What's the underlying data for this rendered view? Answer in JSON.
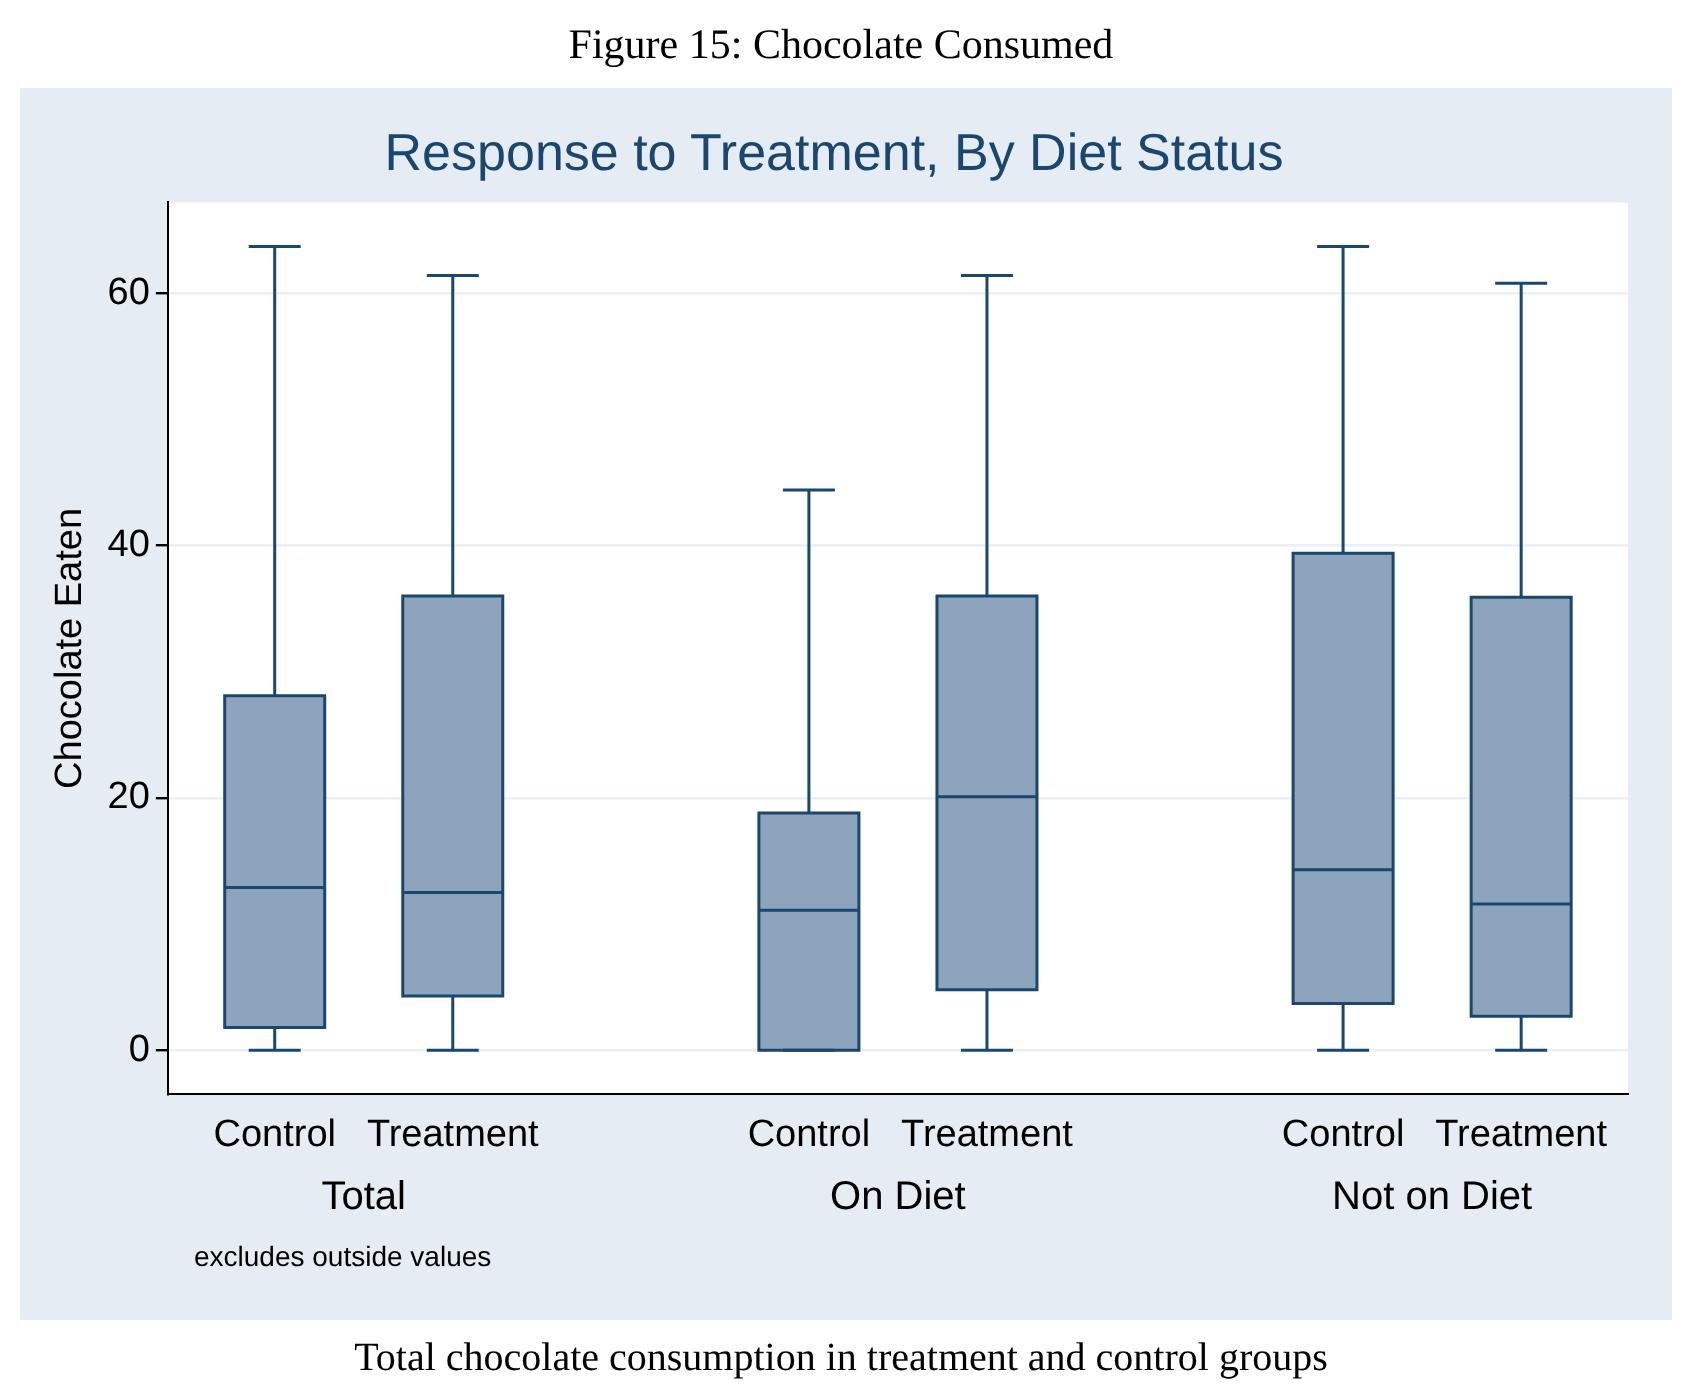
{
  "chart_data": {
    "type": "box",
    "title": "Response to Treatment, By Diet Status",
    "ylabel": "Chocolate Eaten",
    "categories": [
      "Control",
      "Treatment",
      "Control",
      "Treatment",
      "Control",
      "Treatment"
    ],
    "boxes": [
      {
        "low": 0,
        "q1": 1.8,
        "median": 12.9,
        "q3": 28.1,
        "high": 63.7
      },
      {
        "low": 0,
        "q1": 4.3,
        "median": 12.5,
        "q3": 36.0,
        "high": 61.4
      },
      {
        "low": 0,
        "q1": 0,
        "median": 11.1,
        "q3": 18.8,
        "high": 44.4
      },
      {
        "low": 0,
        "q1": 4.8,
        "median": 20.1,
        "q3": 36.0,
        "high": 61.4
      },
      {
        "low": 0,
        "q1": 3.7,
        "median": 14.3,
        "q3": 39.4,
        "high": 63.7
      },
      {
        "low": 0,
        "q1": 2.7,
        "median": 11.6,
        "q3": 35.9,
        "high": 60.8
      }
    ],
    "color": "#8ea4bc",
    "ylim": [
      -3.5,
      67.2
    ],
    "yticks": [
      0,
      20,
      40,
      60
    ],
    "grid": "y",
    "annotations": [
      "Figure 15: Chocolate Consumed",
      "Total",
      "On Diet",
      "Not on Diet",
      "excludes outside values",
      "Total chocolate consumption in treatment and control groups"
    ]
  }
}
